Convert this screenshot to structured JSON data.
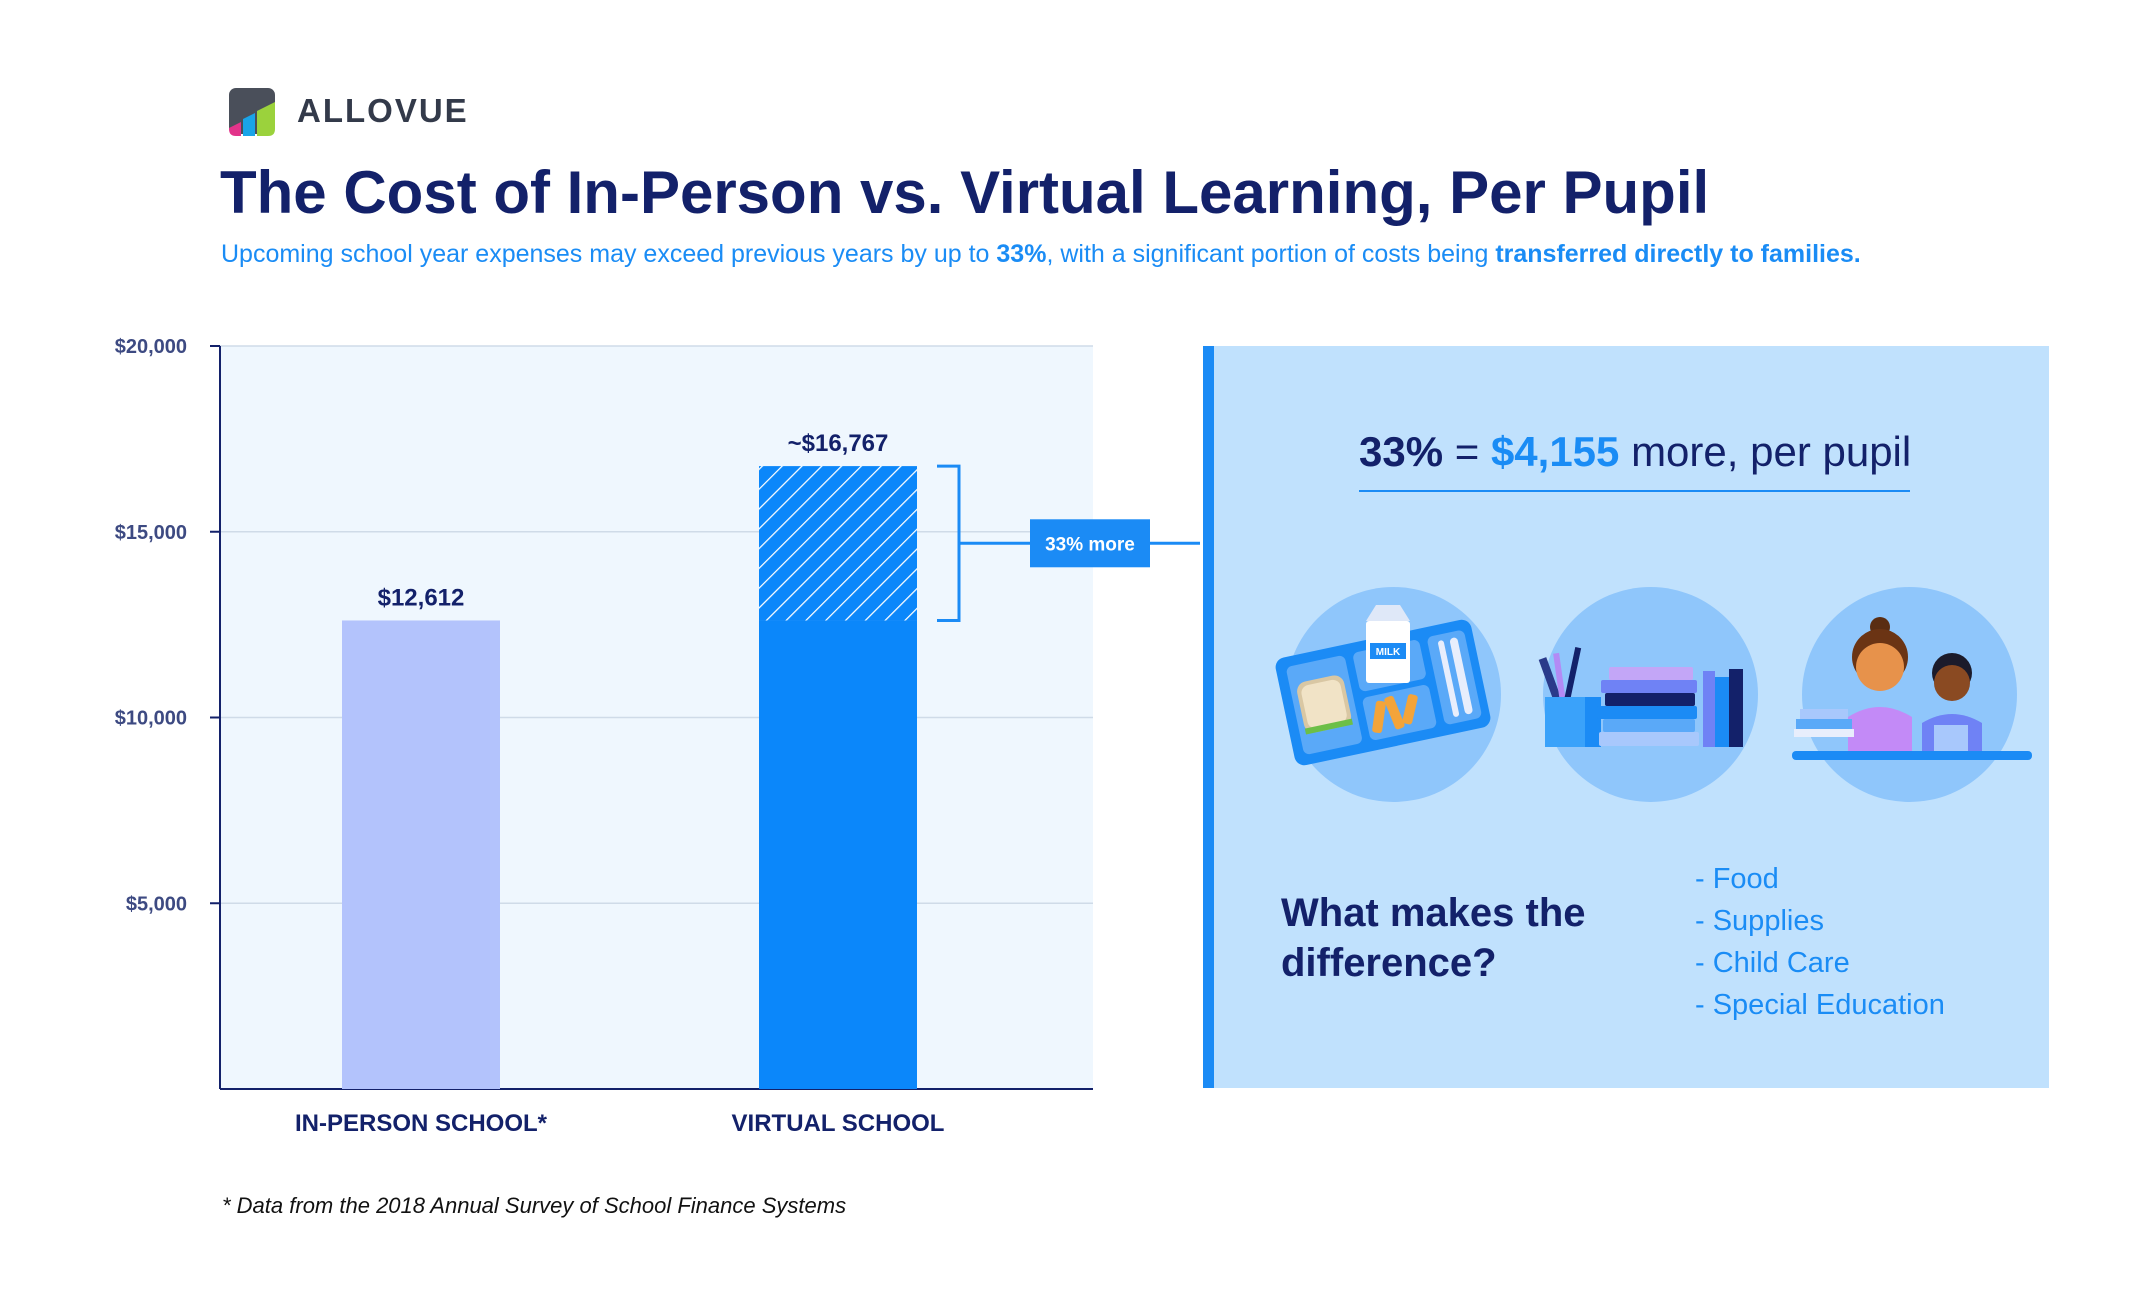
{
  "brand": {
    "name": "ALLOVUE"
  },
  "header": {
    "title": "The Cost of In-Person vs. Virtual Learning, Per Pupil",
    "subtitle_pre": "Upcoming school year expenses may exceed previous years by up to ",
    "subtitle_pct": "33%",
    "subtitle_mid": ", with a significant portion of costs being ",
    "subtitle_bold": "transferred directly to families."
  },
  "chart_data": {
    "type": "bar",
    "categories": [
      "IN-PERSON SCHOOL*",
      "VIRTUAL SCHOOL"
    ],
    "values": [
      12612,
      16767
    ],
    "baseline_value": 12612,
    "data_labels": [
      "$12,612",
      "~$16,767"
    ],
    "ylim": [
      0,
      20000
    ],
    "yticks": [
      5000,
      10000,
      15000,
      20000
    ],
    "ytick_labels": [
      "$5,000",
      "$10,000",
      "$15,000",
      "$20,000"
    ],
    "annotation": "33% more",
    "colors": {
      "in_person": "#b3c3fc",
      "virtual": "#0b87fa",
      "plot_bg": "#eff7fe",
      "axis": "#13216a",
      "grid": "#cfdbe8"
    }
  },
  "panel": {
    "headline_pct": "33%",
    "headline_eq": " = ",
    "headline_amount": "$4,155",
    "headline_rest": " more, per pupil",
    "question": "What makes the difference?",
    "items": [
      "- Food",
      "- Supplies",
      "- Child Care",
      "- Special Education"
    ],
    "illustrations": [
      "lunch-tray-icon",
      "school-supplies-icon",
      "children-reading-icon"
    ],
    "milk_label": "MILK"
  },
  "footnote": "* Data from the 2018 Annual Survey of School Finance Systems"
}
